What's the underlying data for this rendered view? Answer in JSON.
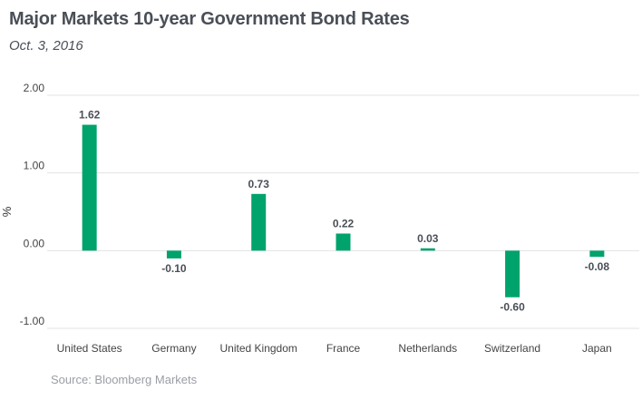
{
  "title": "Major Markets 10-year Government Bond Rates",
  "subtitle": "Oct. 3, 2016",
  "source": "Source: Bloomberg Markets",
  "chart_data": {
    "type": "bar",
    "title": "Major Markets 10-year Government Bond Rates",
    "subtitle": "Oct. 3, 2016",
    "xlabel": "",
    "ylabel": "%",
    "categories": [
      "United States",
      "Germany",
      "United Kingdom",
      "France",
      "Netherlands",
      "Switzerland",
      "Japan"
    ],
    "values": [
      1.62,
      -0.1,
      0.73,
      0.22,
      0.03,
      -0.6,
      -0.08
    ],
    "data_labels": [
      "1.62",
      "-0.10",
      "0.73",
      "0.22",
      "0.03",
      "-0.60",
      "-0.08"
    ],
    "ylim": [
      -1.0,
      2.0
    ],
    "yticks": [
      2.0,
      1.0,
      0.0,
      -1.0
    ],
    "ytick_labels": [
      "2.00",
      "1.00",
      "0.00",
      "-1.00"
    ],
    "grid": true,
    "bar_color": "#00a36c"
  }
}
